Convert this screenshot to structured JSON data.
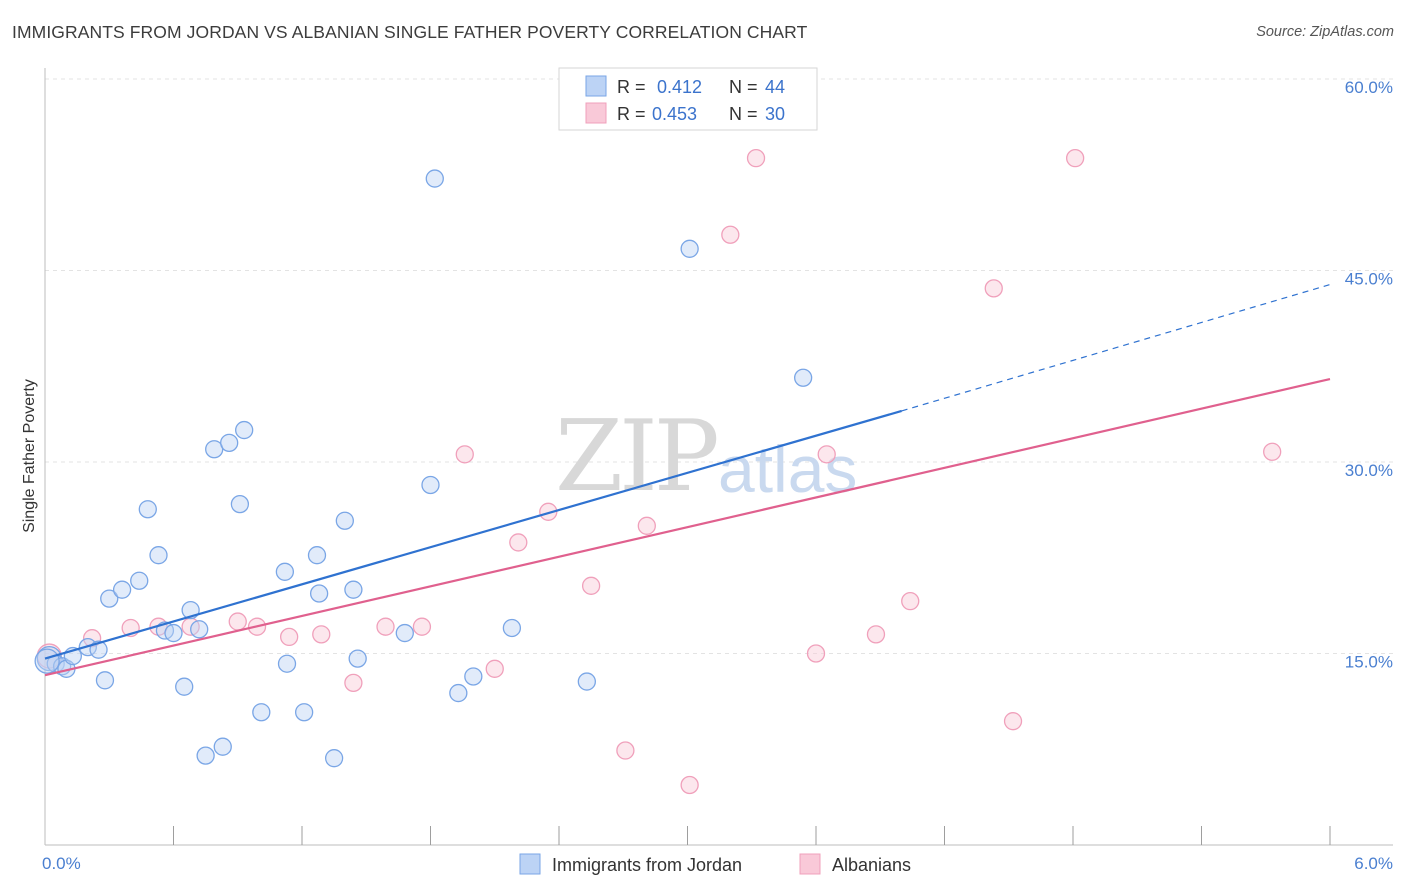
{
  "title": "IMMIGRANTS FROM JORDAN VS ALBANIAN SINGLE FATHER POVERTY CORRELATION CHART",
  "source": "Source: ZipAtlas.com",
  "watermark": {
    "zip": "ZIP",
    "atlas": "atlas"
  },
  "legend": {
    "rows": [
      {
        "r_label": "R =",
        "r_value": "0.412",
        "n_label": "N =",
        "n_value": "44"
      },
      {
        "r_label": "R =",
        "r_value": "0.453",
        "n_label": "N =",
        "n_value": "30"
      }
    ]
  },
  "bottom_legend": [
    "Immigrants from Jordan",
    "Albanians"
  ],
  "chart_data": {
    "type": "scatter",
    "title": "IMMIGRANTS FROM JORDAN VS ALBANIAN SINGLE FATHER POVERTY CORRELATION CHART",
    "xlabel": "",
    "ylabel": "Single Father Poverty",
    "xlim": [
      0,
      6.0
    ],
    "ylim": [
      0,
      60.0
    ],
    "x_tick_labels": [
      "0.0%",
      "6.0%"
    ],
    "y_ticks": [
      15.0,
      30.0,
      45.0,
      60.0
    ],
    "y_tick_labels": [
      "15.0%",
      "30.0%",
      "45.0%",
      "60.0%"
    ],
    "grid": true,
    "colors": {
      "jordan": "#7aa6e6",
      "albanian": "#f0a0bb",
      "jordan_line": "#2f72d0",
      "albanian_line": "#e0608e"
    },
    "series": [
      {
        "name": "Immigrants from Jordan",
        "points": [
          [
            0.02,
            14.6
          ],
          [
            0.05,
            14.2
          ],
          [
            0.08,
            14.0
          ],
          [
            0.1,
            13.8
          ],
          [
            0.13,
            14.8
          ],
          [
            0.2,
            15.5
          ],
          [
            0.25,
            15.3
          ],
          [
            0.28,
            12.9
          ],
          [
            0.3,
            19.3
          ],
          [
            0.36,
            20.0
          ],
          [
            0.44,
            20.7
          ],
          [
            0.48,
            26.3
          ],
          [
            0.53,
            22.7
          ],
          [
            0.56,
            16.8
          ],
          [
            0.6,
            16.6
          ],
          [
            0.65,
            12.4
          ],
          [
            0.68,
            18.4
          ],
          [
            0.72,
            16.9
          ],
          [
            0.75,
            7.0
          ],
          [
            0.79,
            31.0
          ],
          [
            0.83,
            7.7
          ],
          [
            0.86,
            31.5
          ],
          [
            0.91,
            26.7
          ],
          [
            0.93,
            32.5
          ],
          [
            1.01,
            10.4
          ],
          [
            1.12,
            21.4
          ],
          [
            1.13,
            14.2
          ],
          [
            1.21,
            10.4
          ],
          [
            1.27,
            22.7
          ],
          [
            1.28,
            19.7
          ],
          [
            1.35,
            6.8
          ],
          [
            1.4,
            25.4
          ],
          [
            1.44,
            20.0
          ],
          [
            1.46,
            14.6
          ],
          [
            1.68,
            16.6
          ],
          [
            1.8,
            28.2
          ],
          [
            1.82,
            52.2
          ],
          [
            1.93,
            11.9
          ],
          [
            2.0,
            13.2
          ],
          [
            2.18,
            17.0
          ],
          [
            2.53,
            12.8
          ],
          [
            3.01,
            46.7
          ],
          [
            3.54,
            36.6
          ],
          [
            0.01,
            14.4
          ]
        ],
        "trend": {
          "x": [
            0.0,
            4.0
          ],
          "y": [
            14.6,
            34.0
          ],
          "dashed_to": [
            6.0,
            43.9
          ]
        }
      },
      {
        "name": "Albanians",
        "points": [
          [
            0.02,
            14.8
          ],
          [
            0.22,
            16.2
          ],
          [
            0.4,
            17.0
          ],
          [
            0.53,
            17.1
          ],
          [
            0.68,
            17.1
          ],
          [
            0.9,
            17.5
          ],
          [
            0.99,
            17.1
          ],
          [
            1.14,
            16.3
          ],
          [
            1.29,
            16.5
          ],
          [
            1.44,
            12.7
          ],
          [
            1.59,
            17.1
          ],
          [
            1.76,
            17.1
          ],
          [
            1.96,
            30.6
          ],
          [
            2.1,
            13.8
          ],
          [
            2.21,
            23.7
          ],
          [
            2.35,
            26.1
          ],
          [
            2.55,
            20.3
          ],
          [
            2.71,
            7.4
          ],
          [
            2.81,
            25.0
          ],
          [
            3.01,
            4.7
          ],
          [
            3.2,
            47.8
          ],
          [
            3.32,
            53.8
          ],
          [
            3.6,
            15.0
          ],
          [
            3.65,
            30.6
          ],
          [
            3.88,
            16.5
          ],
          [
            4.04,
            19.1
          ],
          [
            4.43,
            43.6
          ],
          [
            4.52,
            9.7
          ],
          [
            4.81,
            53.8
          ],
          [
            5.73,
            30.8
          ]
        ],
        "trend": {
          "x": [
            0.0,
            6.0
          ],
          "y": [
            13.3,
            36.5
          ]
        }
      }
    ]
  }
}
